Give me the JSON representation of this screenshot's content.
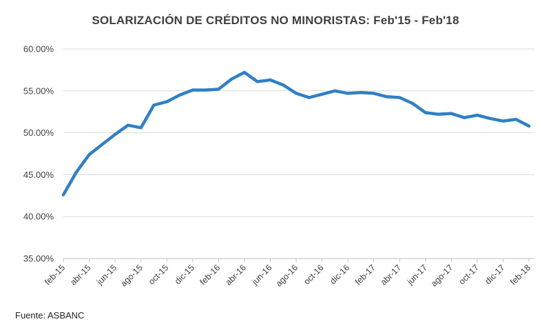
{
  "title": "SOLARIZACIÓN DE CRÉDITOS NO MINORISTAS: Feb'15 - Feb'18",
  "source": "Fuente: ASBANC",
  "colors": {
    "line": "#2f80c5",
    "grid": "#d9d9d9",
    "text": "#404040"
  },
  "chart_data": {
    "type": "line",
    "title": "SOLARIZACIÓN DE CRÉDITOS NO MINORISTAS: Feb'15 - Feb'18",
    "xlabel": "",
    "ylabel": "",
    "ylim": [
      35,
      60
    ],
    "yticks": [
      35,
      40,
      45,
      50,
      55,
      60
    ],
    "ytick_labels": [
      "35.00%",
      "40.00%",
      "45.00%",
      "50.00%",
      "55.00%",
      "60.00%"
    ],
    "grid": true,
    "x": [
      "feb-15",
      "mar-15",
      "abr-15",
      "may-15",
      "jun-15",
      "jul-15",
      "ago-15",
      "sep-15",
      "oct-15",
      "nov-15",
      "dic-15",
      "ene-16",
      "feb-16",
      "mar-16",
      "abr-16",
      "may-16",
      "jun-16",
      "jul-16",
      "ago-16",
      "sep-16",
      "oct-16",
      "nov-16",
      "dic-16",
      "ene-17",
      "feb-17",
      "mar-17",
      "abr-17",
      "may-17",
      "jun-17",
      "jul-17",
      "ago-17",
      "sep-17",
      "oct-17",
      "nov-17",
      "dic-17",
      "ene-18",
      "feb-18"
    ],
    "xtick_labels": [
      "feb-15",
      "abr-15",
      "jun-15",
      "ago-15",
      "oct-15",
      "dic-15",
      "feb-16",
      "abr-16",
      "jun-16",
      "ago-16",
      "oct-16",
      "dic-16",
      "feb-17",
      "abr-17",
      "jun-17",
      "ago-17",
      "oct-17",
      "dic-17",
      "feb-18"
    ],
    "series": [
      {
        "values": [
          42.6,
          45.3,
          47.4,
          48.6,
          49.8,
          50.9,
          50.6,
          53.3,
          53.7,
          54.5,
          55.1,
          55.1,
          55.2,
          56.4,
          57.2,
          56.1,
          56.3,
          55.7,
          54.7,
          54.2,
          54.6,
          55.0,
          54.7,
          54.8,
          54.7,
          54.3,
          54.2,
          53.5,
          52.4,
          52.2,
          52.3,
          51.8,
          52.1,
          51.7,
          51.4,
          51.6,
          50.8
        ]
      }
    ]
  }
}
